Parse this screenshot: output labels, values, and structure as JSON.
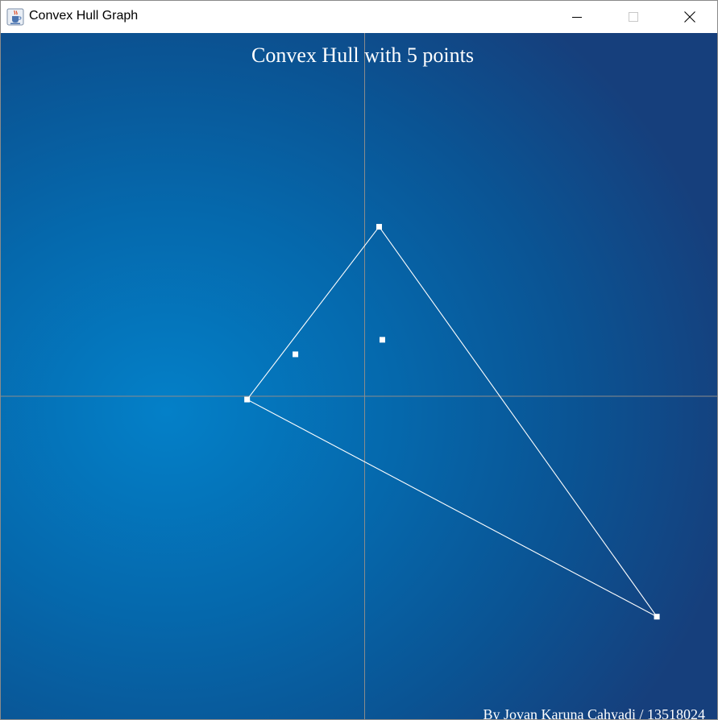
{
  "window": {
    "title": "Convex Hull Graph",
    "icon": "java-cup-icon"
  },
  "controls": {
    "minimize_icon": "minimize-icon",
    "maximize_icon": "maximize-icon",
    "close_icon": "close-icon"
  },
  "colors": {
    "background_center": "#0480c8",
    "background_edge": "#163f7c",
    "axis": "#8c8c8c",
    "hull_line": "#ffffff",
    "point": "#ffffff",
    "text": "#ffffff"
  },
  "graph": {
    "title": "Convex Hull with 5 points",
    "credit": "By Jovan Karuna Cahyadi / 13518024"
  },
  "chart_data": {
    "type": "scatter",
    "title": "Convex Hull with 5 points",
    "grid": false,
    "axes": "centered-crosshair",
    "xlim": [
      -452,
      438
    ],
    "ylim": [
      -400,
      450
    ],
    "points": [
      {
        "x": 18,
        "y": 210
      },
      {
        "x": -146,
        "y": -4
      },
      {
        "x": 363,
        "y": -273
      },
      {
        "x": -86,
        "y": 52
      },
      {
        "x": 22,
        "y": 70
      }
    ],
    "hull": [
      0,
      1,
      2
    ]
  }
}
